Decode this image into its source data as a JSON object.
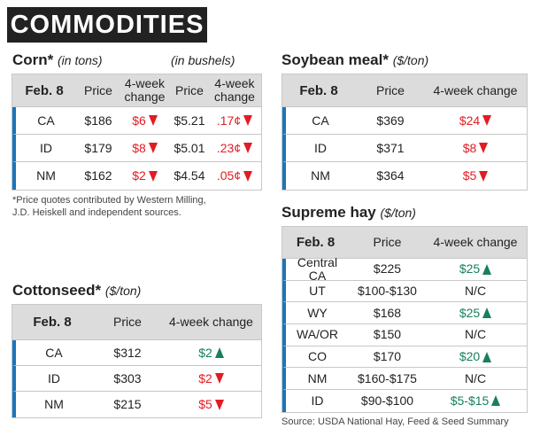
{
  "title": "COMMODITIES",
  "corn": {
    "heading": "Corn*",
    "unit": "(in tons)",
    "unit2": "(in bushels)",
    "columns": [
      "Feb. 8",
      "Price",
      "4-week change",
      "Price",
      "4-week change"
    ],
    "rows": [
      [
        "CA",
        "$186",
        {
          "text": "$6",
          "trend": "down"
        },
        "$5.21",
        {
          "text": ".17¢",
          "trend": "down"
        }
      ],
      [
        "ID",
        "$179",
        {
          "text": "$8",
          "trend": "down"
        },
        "$5.01",
        {
          "text": ".23¢",
          "trend": "down"
        }
      ],
      [
        "NM",
        "$162",
        {
          "text": "$2",
          "trend": "down"
        },
        "$4.54",
        {
          "text": ".05¢",
          "trend": "down"
        }
      ]
    ]
  },
  "footnote": "*Price quotes contributed by Western Milling, J.D. Heiskell and independent sources.",
  "soybean_meal": {
    "heading": "Soybean meal*",
    "unit": "($/ton)",
    "columns": [
      "Feb. 8",
      "Price",
      "4-week change"
    ],
    "rows": [
      [
        "CA",
        "$369",
        {
          "text": "$24",
          "trend": "down"
        }
      ],
      [
        "ID",
        "$371",
        {
          "text": "$8",
          "trend": "down"
        }
      ],
      [
        "NM",
        "$364",
        {
          "text": "$5",
          "trend": "down"
        }
      ]
    ]
  },
  "supreme_hay": {
    "heading": "Supreme hay",
    "unit": "($/ton)",
    "columns": [
      "Feb. 8",
      "Price",
      "4-week change"
    ],
    "rows": [
      [
        "Central CA",
        "$225",
        {
          "text": "$25",
          "trend": "up"
        }
      ],
      [
        "UT",
        "$100-$130",
        {
          "text": "N/C"
        }
      ],
      [
        "WY",
        "$168",
        {
          "text": "$25",
          "trend": "up"
        }
      ],
      [
        "WA/OR",
        "$150",
        {
          "text": "N/C"
        }
      ],
      [
        "CO",
        "$170",
        {
          "text": "$20",
          "trend": "up"
        }
      ],
      [
        "NM",
        "$160-$175",
        {
          "text": "N/C"
        }
      ],
      [
        "ID",
        "$90-$100",
        {
          "text": "$5-$15",
          "trend": "up"
        }
      ]
    ],
    "source": "Source: USDA National Hay, Feed & Seed Summary"
  },
  "cottonseed": {
    "heading": "Cottonseed*",
    "unit": "($/ton)",
    "columns": [
      "Feb. 8",
      "Price",
      "4-week change"
    ],
    "rows": [
      [
        "CA",
        "$312",
        {
          "text": "$2",
          "trend": "up"
        }
      ],
      [
        "ID",
        "$303",
        {
          "text": "$2",
          "trend": "down"
        }
      ],
      [
        "NM",
        "$215",
        {
          "text": "$5",
          "trend": "down"
        }
      ]
    ]
  }
}
